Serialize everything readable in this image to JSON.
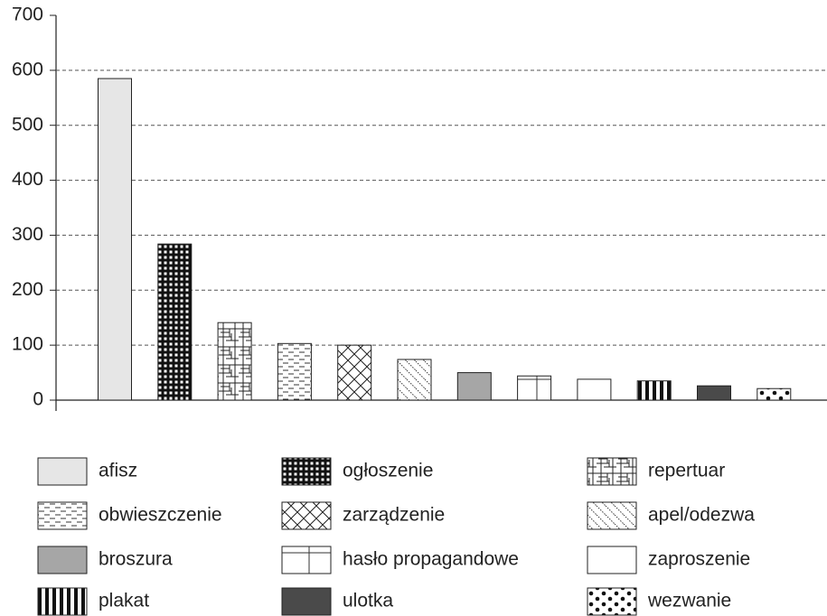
{
  "chart_data": {
    "type": "bar",
    "categories": [
      "afisz",
      "ogłoszenie",
      "repertuar",
      "obwieszczenie",
      "zarządzenie",
      "apel/odezwa",
      "broszura",
      "hasło propagandowe",
      "zaproszenie",
      "plakat",
      "ulotka",
      "wezwanie"
    ],
    "values": [
      585,
      284,
      141,
      103,
      100,
      74,
      50,
      44,
      38,
      35,
      26,
      21
    ],
    "patterns": [
      "light-gray",
      "checker",
      "irregular-grid",
      "dashes",
      "crosshatch",
      "diagonal-dots",
      "gray",
      "cross",
      "white",
      "vertical-stripes",
      "dark-gray",
      "dots"
    ],
    "ylim": [
      0,
      700
    ],
    "yticks": [
      0,
      100,
      200,
      300,
      400,
      500,
      600,
      700
    ],
    "grid": true
  }
}
